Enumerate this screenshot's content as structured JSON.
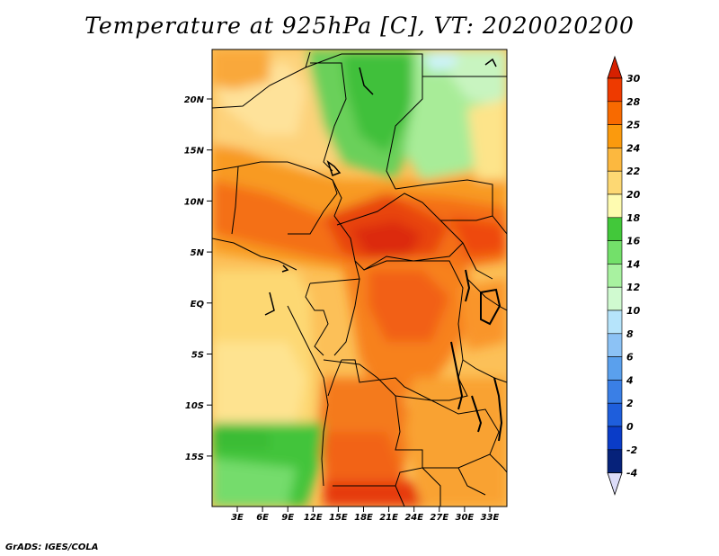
{
  "title": "Temperature at 925hPa [C], VT: 2020020200",
  "credit": "GrADS: IGES/COLA",
  "map": {
    "lat_labels": [
      "20N",
      "15N",
      "10N",
      "5N",
      "EQ",
      "5S",
      "10S",
      "15S"
    ],
    "lon_labels": [
      "3E",
      "6E",
      "9E",
      "12E",
      "15E",
      "18E",
      "21E",
      "24E",
      "27E",
      "30E",
      "33E"
    ],
    "lon_range": [
      0,
      35
    ],
    "lat_range": [
      -20,
      25
    ]
  },
  "colorbar": {
    "labels": [
      "30",
      "28",
      "25",
      "24",
      "22",
      "20",
      "18",
      "16",
      "14",
      "12",
      "10",
      "8",
      "6",
      "4",
      "2",
      "0",
      "-2",
      "-4"
    ],
    "colors": [
      "#d62000",
      "#ee3a00",
      "#f86a00",
      "#fb9a0d",
      "#fcb83f",
      "#fdd873",
      "#fefbb0",
      "#42c83a",
      "#73e06a",
      "#a8f2a0",
      "#d0fad0",
      "#b6e4fb",
      "#8cc2f5",
      "#5aa0ed",
      "#3a7fe6",
      "#1e5edc",
      "#0a3cc8",
      "#06227a"
    ],
    "top_arrow_color": "#d62000",
    "bottom_arrow_color": "#dcdcf8"
  }
}
